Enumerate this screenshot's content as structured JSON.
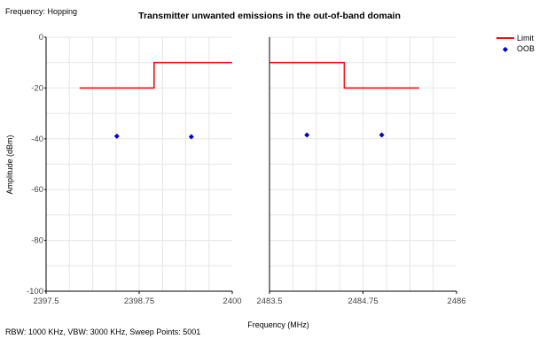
{
  "header": {
    "frequency_label": "Frequency: Hopping",
    "title": "Transmitter unwanted emissions in the out-of-band domain"
  },
  "footer": {
    "settings": "RBW: 1000 KHz,  VBW: 3000 KHz,  Sweep Points: 5001"
  },
  "colors": {
    "limit": "#ee1111",
    "oob": "#0000cc",
    "grid": "#e6e6e6"
  },
  "chart_data": {
    "type": "line",
    "title": "Transmitter unwanted emissions in the out-of-band domain",
    "xlabel": "Frequency (MHz)",
    "ylabel": "Amplitude (dBm)",
    "ylim": [
      -100,
      0
    ],
    "yticks": [
      0,
      -20,
      -40,
      -60,
      -80,
      -100
    ],
    "grid": true,
    "legend_position": "top-right",
    "legend": [
      {
        "name": "Limit",
        "style": "line",
        "color": "#ee1111"
      },
      {
        "name": "OOB",
        "style": "marker",
        "color": "#0000cc"
      }
    ],
    "panels": [
      {
        "xlim": [
          2397.5,
          2400
        ],
        "xticks": [
          {
            "value": 2397.5,
            "label": "2397.5"
          },
          {
            "value": 2398.75,
            "label": "2398.75"
          },
          {
            "value": 2400,
            "label": "2400"
          }
        ],
        "limit": {
          "x": [
            2397.95,
            2398.95,
            2398.95,
            2400
          ],
          "y": [
            -20,
            -20,
            -10,
            -10
          ]
        },
        "oob": {
          "x": [
            2398.45,
            2399.45
          ],
          "y": [
            -39,
            -39.2
          ]
        }
      },
      {
        "xlim": [
          2483.5,
          2486
        ],
        "xticks": [
          {
            "value": 2483.5,
            "label": "2483.5"
          },
          {
            "value": 2484.75,
            "label": "2484.75"
          },
          {
            "value": 2486,
            "label": "2486"
          }
        ],
        "limit": {
          "x": [
            2483.5,
            2484.5,
            2484.5,
            2485.5
          ],
          "y": [
            -10,
            -10,
            -20,
            -20
          ]
        },
        "oob": {
          "x": [
            2484.0,
            2485.0
          ],
          "y": [
            -38.5,
            -38.5
          ]
        }
      }
    ]
  }
}
